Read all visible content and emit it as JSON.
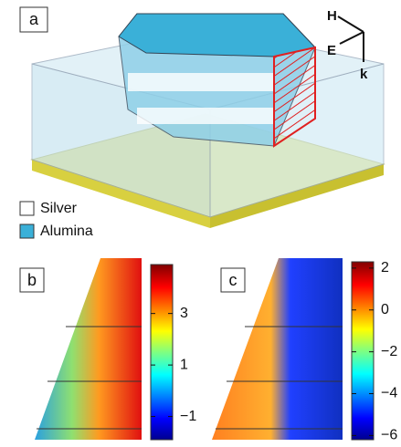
{
  "panels": [
    {
      "label": "a",
      "axes": [
        "H",
        "E",
        "k"
      ],
      "legend": [
        "Silver",
        "Alumina"
      ]
    },
    {
      "label": "b",
      "colorbar": {
        "lim": [
          -1.9,
          4.9
        ],
        "ticks": [
          3,
          1,
          {
            "value": -1,
            "label": "−1"
          }
        ]
      }
    },
    {
      "label": "c",
      "colorbar": {
        "lim": [
          -6.2,
          2.3
        ],
        "ticks": [
          2,
          0,
          {
            "value": -2,
            "label": "−2"
          },
          {
            "value": -4,
            "label": "−4"
          },
          {
            "value": -6,
            "label": "−6"
          }
        ]
      }
    }
  ]
}
